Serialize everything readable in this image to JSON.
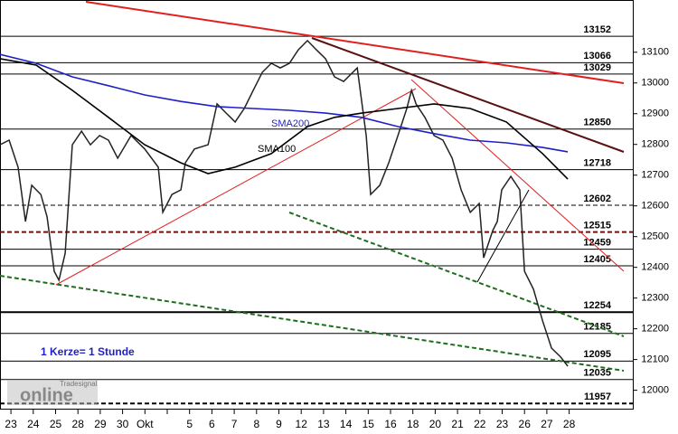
{
  "chart_data": {
    "type": "line",
    "xlim": [
      -0.49,
      27.85
    ],
    "ylim": [
      11940,
      13270
    ],
    "yticks": [
      12000,
      12100,
      12200,
      12300,
      12400,
      12500,
      12600,
      12700,
      12800,
      12900,
      13000,
      13100
    ],
    "categories": [
      "23",
      "24",
      "25",
      "28",
      "29",
      "30",
      "Okt",
      null,
      "5",
      "6",
      "7",
      "8",
      "9",
      "12",
      "13",
      "14",
      "15",
      "16",
      "18",
      "20",
      "21",
      "22",
      "23",
      "26",
      "27",
      "28"
    ],
    "series": [
      {
        "color": "#222222",
        "x": [
          -0.49,
          -0.08,
          0.32,
          0.65,
          0.93,
          1.34,
          1.62,
          1.94,
          2.15,
          2.43,
          2.75,
          3.16,
          3.56,
          3.97,
          4.37,
          4.78,
          5.38,
          5.99,
          6.6,
          6.8,
          7.21,
          7.61,
          7.81,
          8.22,
          8.83,
          9.23,
          9.64,
          10.04,
          10.45,
          10.85,
          11.26,
          11.66,
          12.06,
          12.47,
          12.87,
          13.28,
          13.68,
          14.09,
          14.49,
          14.9,
          15.51,
          15.91,
          16.11,
          16.52,
          16.92,
          17.33,
          17.73,
          17.94,
          18.14,
          18.54,
          18.95,
          19.35,
          19.76,
          20.16,
          20.57,
          20.97,
          21.17,
          21.58,
          21.78,
          21.98,
          22.39,
          22.79,
          23.0,
          23.4,
          23.81,
          24.21,
          24.62,
          24.94
        ],
        "values": [
          12799,
          12814,
          12726,
          12549,
          12667,
          12637,
          12564,
          12387,
          12358,
          12446,
          12799,
          12843,
          12799,
          12829,
          12814,
          12755,
          12829,
          12785,
          12726,
          12579,
          12637,
          12652,
          12740,
          12785,
          12799,
          12932,
          12902,
          12873,
          12917,
          12976,
          13035,
          13064,
          13049,
          13064,
          13108,
          13138,
          13108,
          13079,
          13020,
          13005,
          13049,
          12829,
          12637,
          12667,
          12740,
          12829,
          12917,
          12976,
          12932,
          12888,
          12829,
          12814,
          12755,
          12652,
          12579,
          12608,
          12431,
          12520,
          12549,
          12652,
          12696,
          12652,
          12387,
          12329,
          12226,
          12137,
          12108,
          12078
        ]
      },
      {
        "name": "SMA200",
        "color": "#1f1fc8",
        "x": [
          -0.49,
          1.13,
          2.75,
          4.37,
          5.99,
          7.61,
          9.23,
          10.85,
          12.47,
          14.09,
          15.71,
          17.33,
          18.95,
          20.57,
          22.19,
          23.81,
          24.94
        ],
        "values": [
          13093,
          13064,
          13020,
          12991,
          12961,
          12940,
          12923,
          12917,
          12911,
          12902,
          12888,
          12858,
          12835,
          12814,
          12805,
          12790,
          12776
        ]
      },
      {
        "name": "SMA100",
        "color": "#000000",
        "x": [
          -0.49,
          1.13,
          2.75,
          4.37,
          5.99,
          7.61,
          8.83,
          10.04,
          11.66,
          13.28,
          14.49,
          15.71,
          17.33,
          18.95,
          20.57,
          22.19,
          23.81,
          24.94
        ],
        "values": [
          13079,
          13058,
          12976,
          12888,
          12799,
          12740,
          12705,
          12726,
          12770,
          12858,
          12888,
          12902,
          12917,
          12932,
          12917,
          12873,
          12770,
          12687
        ]
      }
    ],
    "levels": [
      {
        "value": 13152,
        "style": "solid"
      },
      {
        "value": 13066,
        "style": "solid"
      },
      {
        "value": 13029,
        "style": "solid"
      },
      {
        "value": 12850,
        "style": "solid"
      },
      {
        "value": 12718,
        "style": "solid"
      },
      {
        "value": 12602,
        "style": "dashed"
      },
      {
        "value": 12515,
        "style": "bold-dashed"
      },
      {
        "value": 12459,
        "style": "solid"
      },
      {
        "value": 12405,
        "style": "solid"
      },
      {
        "value": 12254,
        "style": "bold"
      },
      {
        "value": 12185,
        "style": "solid"
      },
      {
        "value": 12095,
        "style": "solid"
      },
      {
        "value": 12035,
        "style": "solid"
      },
      {
        "value": 11957,
        "style": "bold-dashed"
      }
    ],
    "annotations": {
      "note": "1 Kerze= 1 Stunde",
      "logo_small": "Tradesignal",
      "logo": "online"
    }
  }
}
